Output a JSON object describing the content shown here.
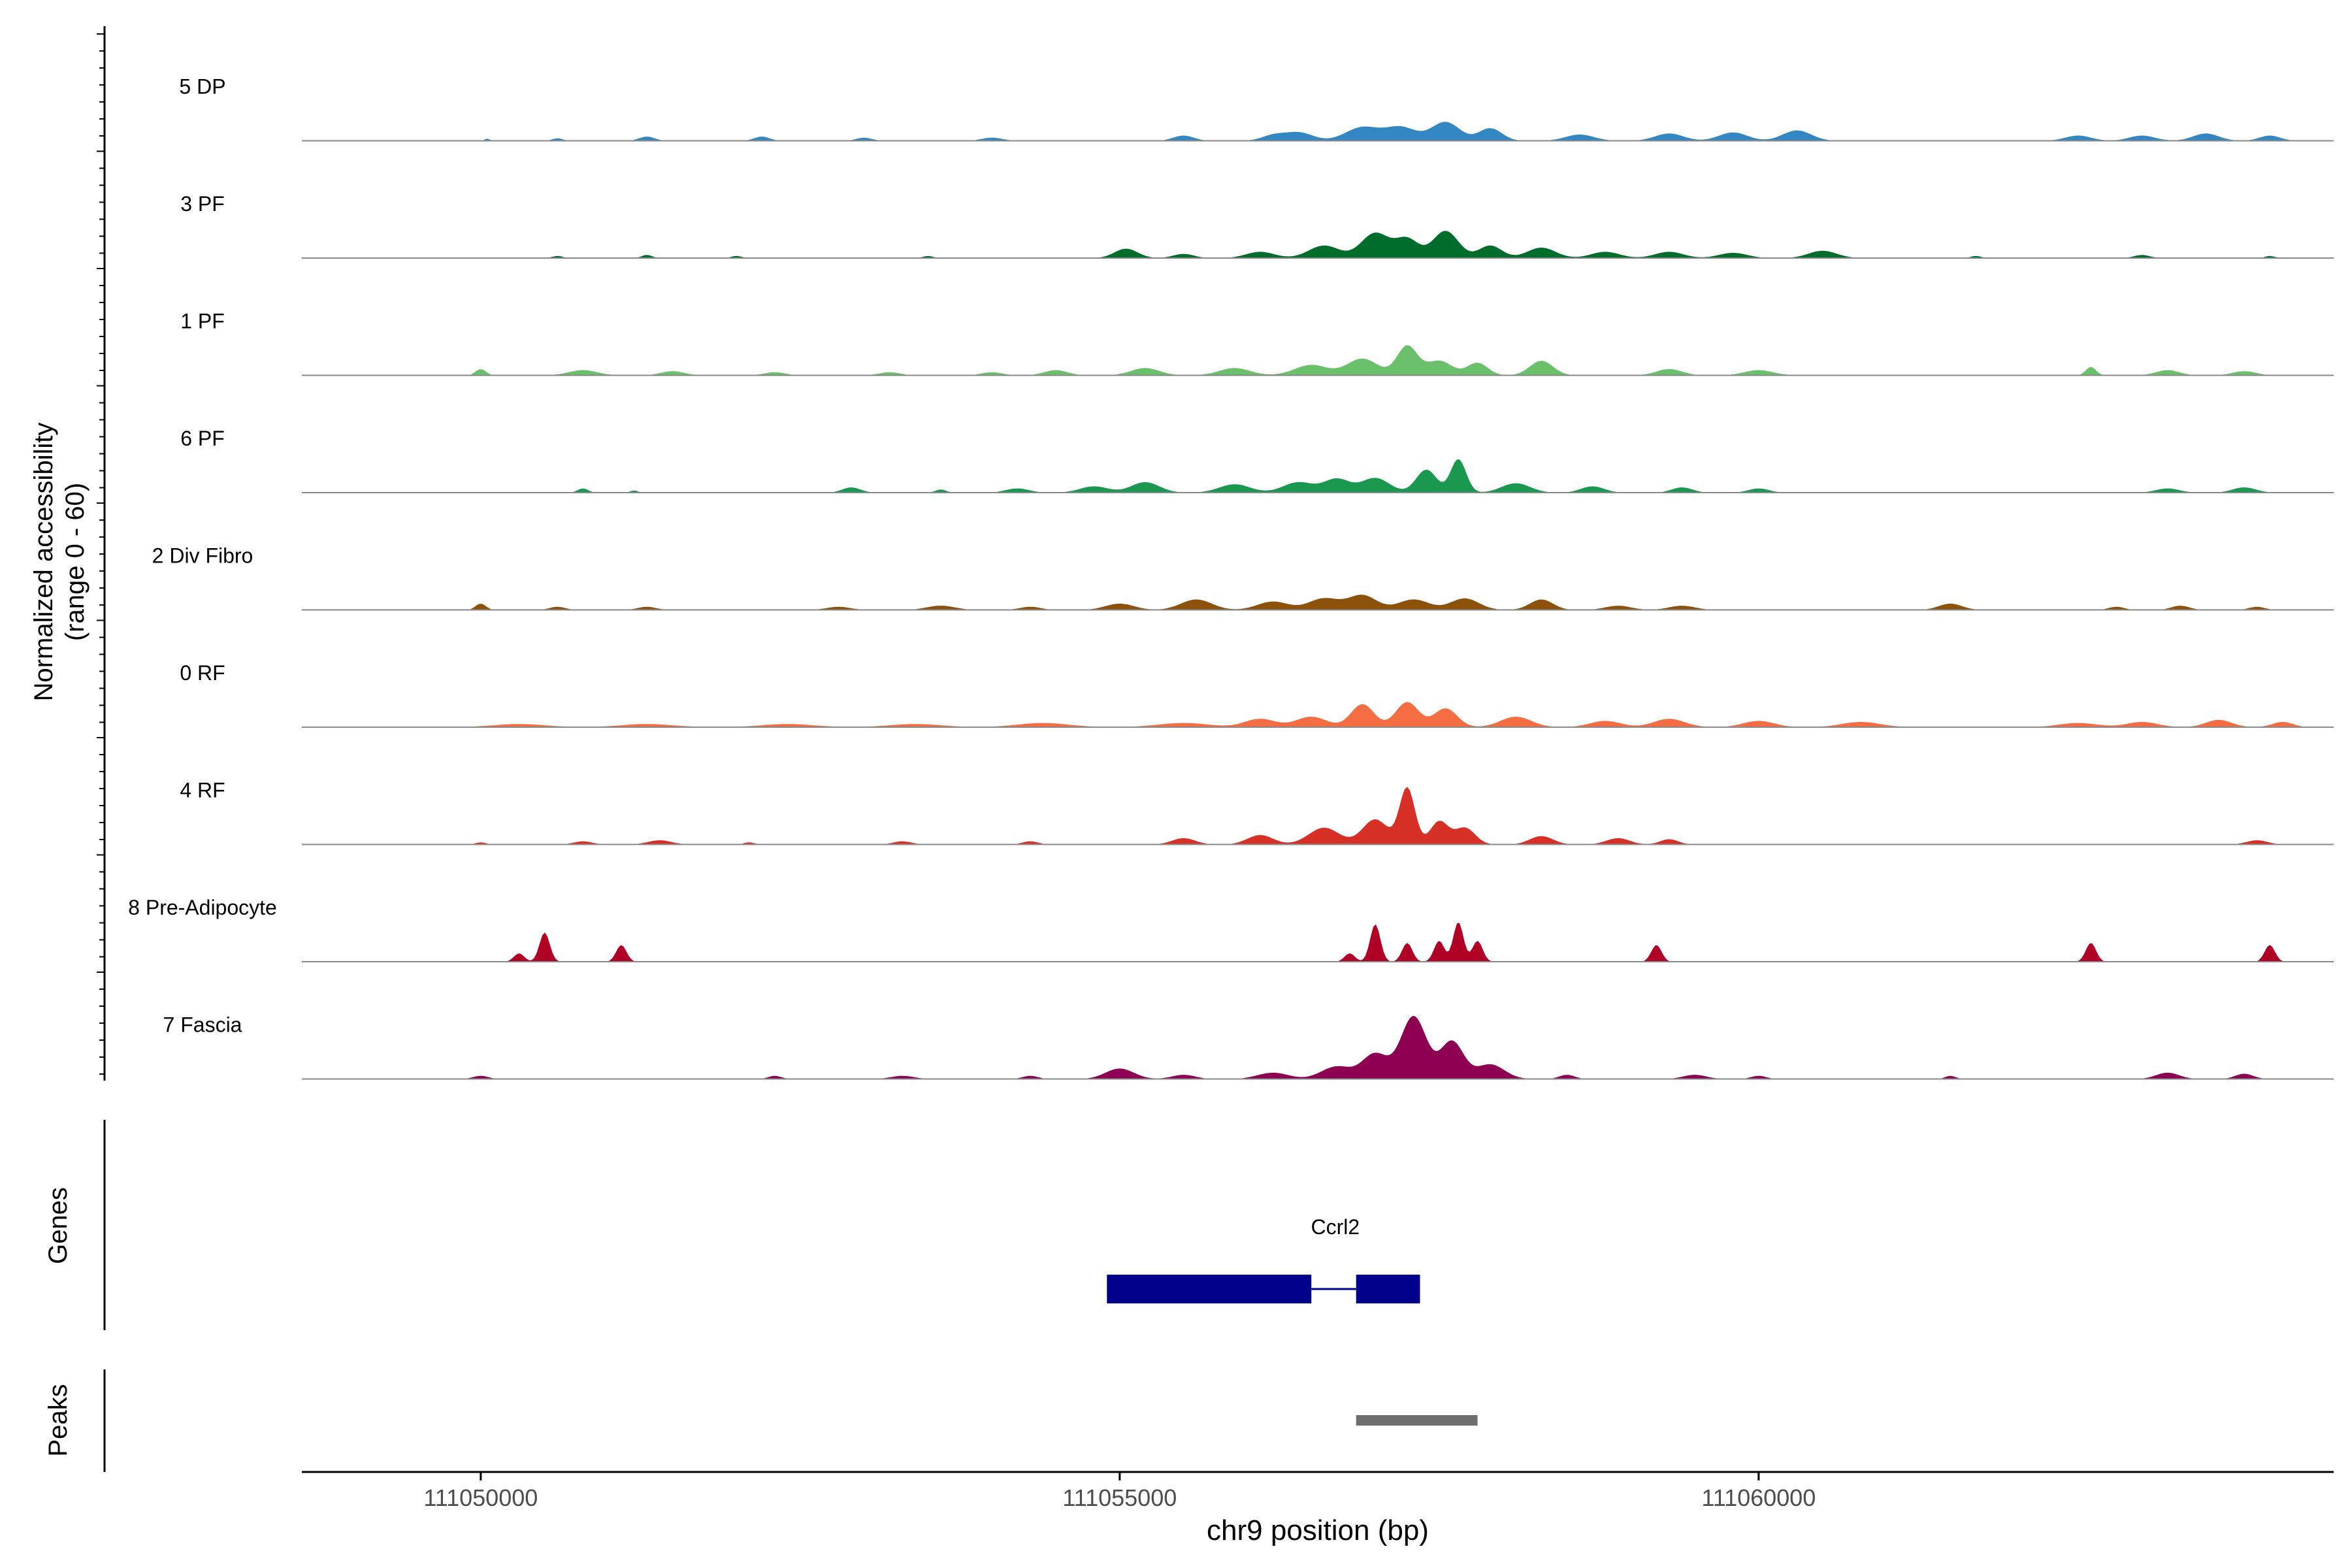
{
  "chart_data": {
    "type": "area",
    "title": "",
    "xlabel": "chr9 position (bp)",
    "ylabel_line1": "Normalized accessibility",
    "ylabel_line2": "(range 0 - 60)",
    "ylim": [
      0,
      60
    ],
    "xlim": [
      111048600,
      111064500
    ],
    "x_ticks": [
      111050000,
      111055000,
      111060000
    ],
    "x_tick_labels": [
      "111050000",
      "111055000",
      "111060000"
    ],
    "genes_label": "Genes",
    "peaks_label": "Peaks",
    "tracks": [
      {
        "name": "5 DP",
        "color": "#3387C2",
        "peaks": [
          [
            111050050,
            1.0,
            20
          ],
          [
            111050600,
            1.2,
            40
          ],
          [
            111051300,
            2.0,
            60
          ],
          [
            111052200,
            2.0,
            60
          ],
          [
            111053000,
            1.5,
            60
          ],
          [
            111054000,
            1.5,
            80
          ],
          [
            111055500,
            2.5,
            80
          ],
          [
            111056200,
            2.5,
            90
          ],
          [
            111056400,
            4.0,
            110
          ],
          [
            111056900,
            6.5,
            130
          ],
          [
            111057200,
            6.5,
            120
          ],
          [
            111057550,
            9.0,
            110
          ],
          [
            111057900,
            6.0,
            90
          ],
          [
            111058600,
            3.0,
            110
          ],
          [
            111059300,
            3.5,
            110
          ],
          [
            111059800,
            4.0,
            110
          ],
          [
            111060300,
            5.0,
            110
          ],
          [
            111062500,
            2.5,
            100
          ],
          [
            111063000,
            2.5,
            100
          ],
          [
            111063500,
            3.5,
            100
          ],
          [
            111064000,
            2.5,
            80
          ]
        ]
      },
      {
        "name": "3 PF",
        "color": "#006D2C",
        "peaks": [
          [
            111050600,
            1.0,
            40
          ],
          [
            111051300,
            1.5,
            40
          ],
          [
            111052000,
            1.0,
            40
          ],
          [
            111053500,
            1.0,
            40
          ],
          [
            111055050,
            4.5,
            90
          ],
          [
            111055500,
            2.0,
            80
          ],
          [
            111056100,
            3.0,
            110
          ],
          [
            111056600,
            6.0,
            120
          ],
          [
            111057000,
            12.0,
            110
          ],
          [
            111057250,
            9.0,
            90
          ],
          [
            111057550,
            13.0,
            100
          ],
          [
            111057900,
            6.0,
            90
          ],
          [
            111058300,
            5.0,
            110
          ],
          [
            111058800,
            3.0,
            110
          ],
          [
            111059300,
            3.0,
            110
          ],
          [
            111059800,
            2.5,
            110
          ],
          [
            111060500,
            3.5,
            110
          ],
          [
            111061700,
            1.0,
            40
          ],
          [
            111063000,
            1.5,
            60
          ],
          [
            111064000,
            1.0,
            40
          ]
        ]
      },
      {
        "name": "1 PF",
        "color": "#6BC06B",
        "peaks": [
          [
            111050000,
            3.0,
            40
          ],
          [
            111050800,
            2.5,
            110
          ],
          [
            111051500,
            2.0,
            90
          ],
          [
            111052300,
            1.5,
            80
          ],
          [
            111053200,
            1.5,
            80
          ],
          [
            111054000,
            1.5,
            80
          ],
          [
            111054500,
            2.5,
            90
          ],
          [
            111055200,
            3.5,
            110
          ],
          [
            111055900,
            3.5,
            120
          ],
          [
            111056500,
            5.0,
            130
          ],
          [
            111056900,
            8.0,
            120
          ],
          [
            111057250,
            14.0,
            80
          ],
          [
            111057500,
            7.0,
            100
          ],
          [
            111057800,
            6.0,
            80
          ],
          [
            111058300,
            7.0,
            90
          ],
          [
            111059300,
            3.0,
            100
          ],
          [
            111060000,
            2.5,
            110
          ],
          [
            111062600,
            4.0,
            40
          ],
          [
            111063200,
            2.5,
            90
          ],
          [
            111063800,
            2.0,
            90
          ]
        ]
      },
      {
        "name": "6 PF",
        "color": "#1A9850",
        "peaks": [
          [
            111050800,
            2.0,
            40
          ],
          [
            111051200,
            1.0,
            30
          ],
          [
            111052900,
            2.5,
            70
          ],
          [
            111053600,
            1.5,
            40
          ],
          [
            111054200,
            2.0,
            90
          ],
          [
            111054800,
            3.0,
            110
          ],
          [
            111055200,
            5.0,
            110
          ],
          [
            111055900,
            4.0,
            120
          ],
          [
            111056400,
            5.0,
            120
          ],
          [
            111056700,
            6.5,
            100
          ],
          [
            111057000,
            7.0,
            110
          ],
          [
            111057400,
            11.0,
            80
          ],
          [
            111057650,
            16.0,
            60
          ],
          [
            111058100,
            4.5,
            110
          ],
          [
            111058700,
            3.0,
            90
          ],
          [
            111059400,
            2.5,
            80
          ],
          [
            111060000,
            2.0,
            80
          ],
          [
            111063200,
            2.0,
            90
          ],
          [
            111063800,
            2.5,
            90
          ]
        ]
      },
      {
        "name": "2 Div Fibro",
        "color": "#8C510A",
        "peaks": [
          [
            111050000,
            3.0,
            40
          ],
          [
            111050600,
            1.5,
            60
          ],
          [
            111051300,
            1.5,
            70
          ],
          [
            111052800,
            1.5,
            90
          ],
          [
            111053600,
            2.0,
            110
          ],
          [
            111054300,
            1.5,
            80
          ],
          [
            111055000,
            3.0,
            110
          ],
          [
            111055600,
            5.0,
            120
          ],
          [
            111056200,
            4.0,
            120
          ],
          [
            111056600,
            5.5,
            120
          ],
          [
            111056900,
            7.0,
            110
          ],
          [
            111057300,
            5.0,
            120
          ],
          [
            111057700,
            5.5,
            110
          ],
          [
            111058300,
            5.0,
            90
          ],
          [
            111058900,
            2.0,
            100
          ],
          [
            111059400,
            2.0,
            100
          ],
          [
            111061500,
            3.0,
            90
          ],
          [
            111062800,
            1.5,
            60
          ],
          [
            111063300,
            2.0,
            70
          ],
          [
            111063900,
            1.5,
            60
          ]
        ]
      },
      {
        "name": "0 RF",
        "color": "#F46D43",
        "peaks": [
          [
            111050300,
            1.5,
            200
          ],
          [
            111051300,
            1.5,
            200
          ],
          [
            111052400,
            1.5,
            200
          ],
          [
            111053400,
            1.5,
            200
          ],
          [
            111054400,
            2.0,
            200
          ],
          [
            111055500,
            2.0,
            200
          ],
          [
            111056100,
            4.0,
            120
          ],
          [
            111056500,
            5.0,
            120
          ],
          [
            111056900,
            11.0,
            90
          ],
          [
            111057250,
            12.0,
            90
          ],
          [
            111057550,
            9.0,
            90
          ],
          [
            111058100,
            5.0,
            120
          ],
          [
            111058800,
            3.0,
            120
          ],
          [
            111059300,
            4.0,
            120
          ],
          [
            111060000,
            3.0,
            120
          ],
          [
            111060800,
            2.5,
            150
          ],
          [
            111062500,
            2.0,
            150
          ],
          [
            111063000,
            2.5,
            120
          ],
          [
            111063600,
            3.5,
            100
          ],
          [
            111064100,
            2.5,
            80
          ]
        ]
      },
      {
        "name": "4 RF",
        "color": "#D73027",
        "peaks": [
          [
            111050000,
            1.0,
            40
          ],
          [
            111050800,
            1.5,
            70
          ],
          [
            111051400,
            2.0,
            90
          ],
          [
            111052100,
            1.0,
            40
          ],
          [
            111053300,
            1.5,
            70
          ],
          [
            111054300,
            1.5,
            60
          ],
          [
            111055500,
            3.0,
            90
          ],
          [
            111056100,
            4.5,
            100
          ],
          [
            111056600,
            8.0,
            120
          ],
          [
            111057000,
            12.0,
            100
          ],
          [
            111057250,
            27.0,
            60
          ],
          [
            111057500,
            11.0,
            70
          ],
          [
            111057700,
            8.0,
            80
          ],
          [
            111058300,
            4.0,
            90
          ],
          [
            111058900,
            3.0,
            90
          ],
          [
            111059300,
            2.5,
            70
          ],
          [
            111063900,
            2.0,
            80
          ]
        ]
      },
      {
        "name": "8 Pre-Adipocyte",
        "color": "#B10026",
        "peaks": [
          [
            111050300,
            4.0,
            40
          ],
          [
            111050500,
            14.0,
            40
          ],
          [
            111051100,
            8.0,
            40
          ],
          [
            111056800,
            4.0,
            40
          ],
          [
            111057000,
            18.0,
            40
          ],
          [
            111057250,
            9.0,
            40
          ],
          [
            111057500,
            10.0,
            40
          ],
          [
            111057650,
            19.0,
            40
          ],
          [
            111057800,
            10.0,
            40
          ],
          [
            111059200,
            8.0,
            40
          ],
          [
            111062600,
            9.0,
            40
          ],
          [
            111064000,
            8.0,
            40
          ]
        ]
      },
      {
        "name": "7 Fascia",
        "color": "#8E0152",
        "peaks": [
          [
            111050000,
            1.5,
            60
          ],
          [
            111052300,
            1.5,
            50
          ],
          [
            111053300,
            1.5,
            90
          ],
          [
            111054300,
            1.5,
            60
          ],
          [
            111055000,
            5.0,
            110
          ],
          [
            111055500,
            2.0,
            90
          ],
          [
            111056200,
            3.0,
            120
          ],
          [
            111056700,
            6.0,
            120
          ],
          [
            111057000,
            12.0,
            100
          ],
          [
            111057300,
            30.0,
            100
          ],
          [
            111057600,
            18.0,
            90
          ],
          [
            111057900,
            7.0,
            110
          ],
          [
            111058500,
            2.0,
            60
          ],
          [
            111059500,
            2.0,
            90
          ],
          [
            111060000,
            1.5,
            60
          ],
          [
            111061500,
            1.5,
            40
          ],
          [
            111063200,
            3.0,
            90
          ],
          [
            111063800,
            2.5,
            70
          ]
        ]
      }
    ],
    "genes": [
      {
        "name": "Ccrl2",
        "exons": [
          [
            111054900,
            111056500
          ],
          [
            111056850,
            111057350
          ]
        ],
        "intron": [
          111056500,
          111056850
        ]
      }
    ],
    "peak_regions": [
      [
        111056850,
        111057800
      ]
    ]
  },
  "colors": {
    "axis": "#000000",
    "baseline": "#888888",
    "gene": "#00008B",
    "peak_region": "#6E6E6E"
  }
}
